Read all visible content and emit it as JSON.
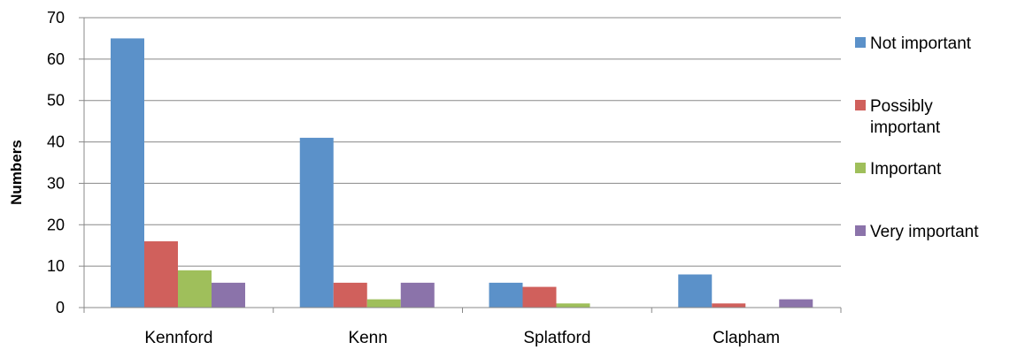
{
  "chart_data": {
    "type": "bar",
    "title": "",
    "xlabel": "",
    "ylabel": "Numbers",
    "ylim": [
      0,
      70
    ],
    "yticks": [
      0,
      10,
      20,
      30,
      40,
      50,
      60,
      70
    ],
    "grid": true,
    "legend_position": "right",
    "categories": [
      "Kennford",
      "Kenn",
      "Splatford",
      "Clapham"
    ],
    "series": [
      {
        "name": "Not important",
        "legend_lines": [
          "Not important"
        ],
        "color": "#5b91c9",
        "values": [
          65,
          41,
          6,
          8
        ]
      },
      {
        "name": "Possibly important",
        "legend_lines": [
          "Possibly",
          "important"
        ],
        "color": "#d0605c",
        "values": [
          16,
          6,
          5,
          1
        ]
      },
      {
        "name": "Important",
        "legend_lines": [
          "Important"
        ],
        "color": "#9fbf5b",
        "values": [
          9,
          2,
          1,
          0
        ]
      },
      {
        "name": "Very important",
        "legend_lines": [
          "Very important"
        ],
        "color": "#8b73aa",
        "values": [
          6,
          6,
          0,
          2
        ]
      }
    ]
  }
}
